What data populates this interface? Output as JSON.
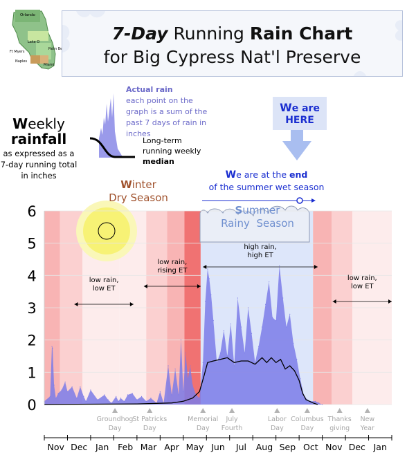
{
  "title": {
    "italic_bold": "7-Day",
    "word1": "Running",
    "bold": "Rain Chart",
    "line2": "for Big Cypress Nat'l Preserve"
  },
  "map": {
    "place_labels": [
      "Orlando",
      "Lake O",
      "Ft Myers",
      "Palm Beach",
      "Naples",
      "Miami"
    ]
  },
  "weekly_label": {
    "cap1": "W",
    "rest1": "eekly",
    "line2": "rainfall",
    "small": "as expressed as a 7-day running total in inches"
  },
  "legend": {
    "actual_title": "Actual rain",
    "actual_desc": "each point on the graph is a sum of the past 7 days of rain in inches",
    "median_title": "Long-term",
    "median_l2": "running weekly",
    "median_l3": "median"
  },
  "here": {
    "cap": "W",
    "rest": "e are",
    "line2": "HERE"
  },
  "season_end": {
    "cap": "W",
    "t1": "e are at the ",
    "bold": "end",
    "t2": "of the summer wet season"
  },
  "winter": {
    "cap": "W",
    "rest": "inter",
    "line2": "Dry Season"
  },
  "summer": {
    "cap": "S",
    "rest": "ummer",
    "line2": "Rainy  Season"
  },
  "range_labels": [
    {
      "id": "low1",
      "l1": "low rain,",
      "l2": "low ET"
    },
    {
      "id": "rising",
      "l1": "low rain,",
      "l2": "rising ET"
    },
    {
      "id": "high",
      "l1": "high rain,",
      "l2": "high ET"
    },
    {
      "id": "low2",
      "l1": "low rain,",
      "l2": "low ET"
    }
  ],
  "colors": {
    "actual": "#7b7be8",
    "median": "#000000",
    "summer_band": "#dde6fa",
    "dry_light": "#fdecec",
    "dry_mid": "#f8b4b4",
    "dry_dark": "#f07272",
    "sun": "#f7f275",
    "accent_blue": "#1a2ed0",
    "winter_brown": "#a0522d"
  },
  "chart_data": {
    "type": "area",
    "title": "7-Day Running Rain Chart for Big Cypress Nat'l Preserve",
    "ylabel": "Weekly rainfall (7-day running total, inches)",
    "ylim": [
      0,
      6
    ],
    "yticks": [
      0,
      1,
      2,
      3,
      4,
      5,
      6
    ],
    "xlim": [
      0,
      15
    ],
    "months": [
      "Nov",
      "Dec",
      "Jan",
      "Feb",
      "Mar",
      "Apr",
      "May",
      "Jun",
      "Jul",
      "Aug",
      "Sep",
      "Oct",
      "Nov",
      "Dec",
      "Jan"
    ],
    "holidays": [
      {
        "l1": "Groundhog",
        "l2": "Day",
        "x": 3.05
      },
      {
        "l1": "St Patricks",
        "l2": "Day",
        "x": 4.55
      },
      {
        "l1": "Memorial",
        "l2": "Day",
        "x": 6.85
      },
      {
        "l1": "July",
        "l2": "Fourth",
        "x": 8.1
      },
      {
        "l1": "Labor",
        "l2": "Day",
        "x": 10.05
      },
      {
        "l1": "Columbus",
        "l2": "Day",
        "x": 11.35
      },
      {
        "l1": "Thanks",
        "l2": "giving",
        "x": 12.75
      },
      {
        "l1": "New",
        "l2": "Year",
        "x": 13.95
      }
    ],
    "background_bands": [
      {
        "from": 0.0,
        "to": 0.68,
        "level": "mid"
      },
      {
        "from": 0.68,
        "to": 1.65,
        "level": "light"
      },
      {
        "from": 1.65,
        "to": 3.25,
        "level": "faint"
      },
      {
        "from": 3.25,
        "to": 4.4,
        "level": "faint"
      },
      {
        "from": 4.4,
        "to": 5.3,
        "level": "light"
      },
      {
        "from": 5.3,
        "to": 6.05,
        "level": "mid"
      },
      {
        "from": 6.05,
        "to": 6.75,
        "level": "dark"
      },
      {
        "from": 6.75,
        "to": 11.6,
        "level": "summer"
      },
      {
        "from": 11.6,
        "to": 12.4,
        "level": "mid"
      },
      {
        "from": 12.4,
        "to": 13.3,
        "level": "light"
      },
      {
        "from": 13.3,
        "to": 15.0,
        "level": "faint"
      }
    ],
    "ranges": [
      {
        "label": "low1",
        "from": 1.3,
        "to": 3.85
      },
      {
        "label": "rising",
        "from": 4.3,
        "to": 6.75
      },
      {
        "label": "high",
        "from": 6.85,
        "to": 11.8
      },
      {
        "label": "low2",
        "from": 12.45,
        "to": 15.0
      }
    ],
    "current_marker_x": 11.45,
    "series": [
      {
        "name": "Actual rain (7-day total)",
        "x": [
          0.0,
          0.25,
          0.33,
          0.36,
          0.42,
          0.5,
          0.6,
          0.75,
          0.9,
          1.0,
          1.2,
          1.4,
          1.55,
          1.7,
          1.8,
          2.0,
          2.3,
          2.6,
          2.75,
          2.9,
          3.1,
          3.2,
          3.3,
          3.45,
          3.6,
          3.8,
          4.0,
          4.2,
          4.4,
          4.6,
          4.85,
          5.0,
          5.15,
          5.35,
          5.5,
          5.65,
          5.8,
          5.9,
          6.0,
          6.1,
          6.2,
          6.3,
          6.4,
          6.55,
          6.7,
          6.85,
          6.95,
          7.05,
          7.12,
          7.2,
          7.3,
          7.45,
          7.6,
          7.75,
          7.9,
          8.05,
          8.2,
          8.35,
          8.5,
          8.65,
          8.8,
          8.95,
          9.1,
          9.25,
          9.4,
          9.55,
          9.7,
          9.85,
          10.0,
          10.15,
          10.3,
          10.45,
          10.6,
          10.75,
          10.9,
          11.05,
          11.2,
          11.35,
          11.5,
          11.7,
          11.85,
          12.0
        ],
        "values": [
          0.1,
          0.25,
          1.8,
          1.75,
          0.6,
          0.2,
          0.35,
          0.45,
          0.7,
          0.4,
          0.55,
          0.2,
          0.55,
          0.25,
          0.1,
          0.45,
          0.15,
          0.3,
          0.15,
          0.05,
          0.25,
          0.1,
          0.2,
          0.1,
          0.3,
          0.35,
          0.15,
          0.25,
          0.1,
          0.2,
          0.05,
          0.4,
          0.05,
          1.2,
          0.3,
          1.1,
          0.3,
          2.0,
          0.4,
          1.6,
          0.8,
          1.2,
          0.6,
          0.3,
          0.2,
          1.3,
          3.2,
          4.2,
          3.9,
          3.4,
          2.6,
          1.3,
          1.6,
          2.3,
          1.5,
          2.5,
          1.2,
          3.3,
          2.4,
          1.6,
          3.0,
          2.2,
          1.3,
          1.8,
          2.4,
          3.1,
          3.8,
          2.7,
          2.6,
          4.3,
          3.3,
          2.4,
          2.8,
          1.9,
          1.4,
          0.8,
          0.3,
          0.15,
          0.1,
          0.1,
          0.05,
          0.0
        ]
      },
      {
        "name": "Long-term running weekly median",
        "x": [
          0.0,
          2.0,
          4.0,
          5.5,
          6.0,
          6.4,
          6.7,
          6.9,
          7.05,
          7.3,
          7.6,
          7.9,
          8.2,
          8.5,
          8.8,
          9.1,
          9.4,
          9.6,
          9.8,
          10.0,
          10.2,
          10.4,
          10.6,
          10.8,
          11.0,
          11.15,
          11.3,
          11.45,
          11.6,
          11.8
        ],
        "values": [
          0.0,
          0.01,
          0.02,
          0.05,
          0.1,
          0.2,
          0.4,
          0.9,
          1.3,
          1.35,
          1.4,
          1.45,
          1.3,
          1.35,
          1.35,
          1.25,
          1.45,
          1.3,
          1.45,
          1.3,
          1.4,
          1.1,
          1.2,
          1.05,
          0.75,
          0.35,
          0.15,
          0.1,
          0.05,
          0.0
        ]
      }
    ]
  }
}
